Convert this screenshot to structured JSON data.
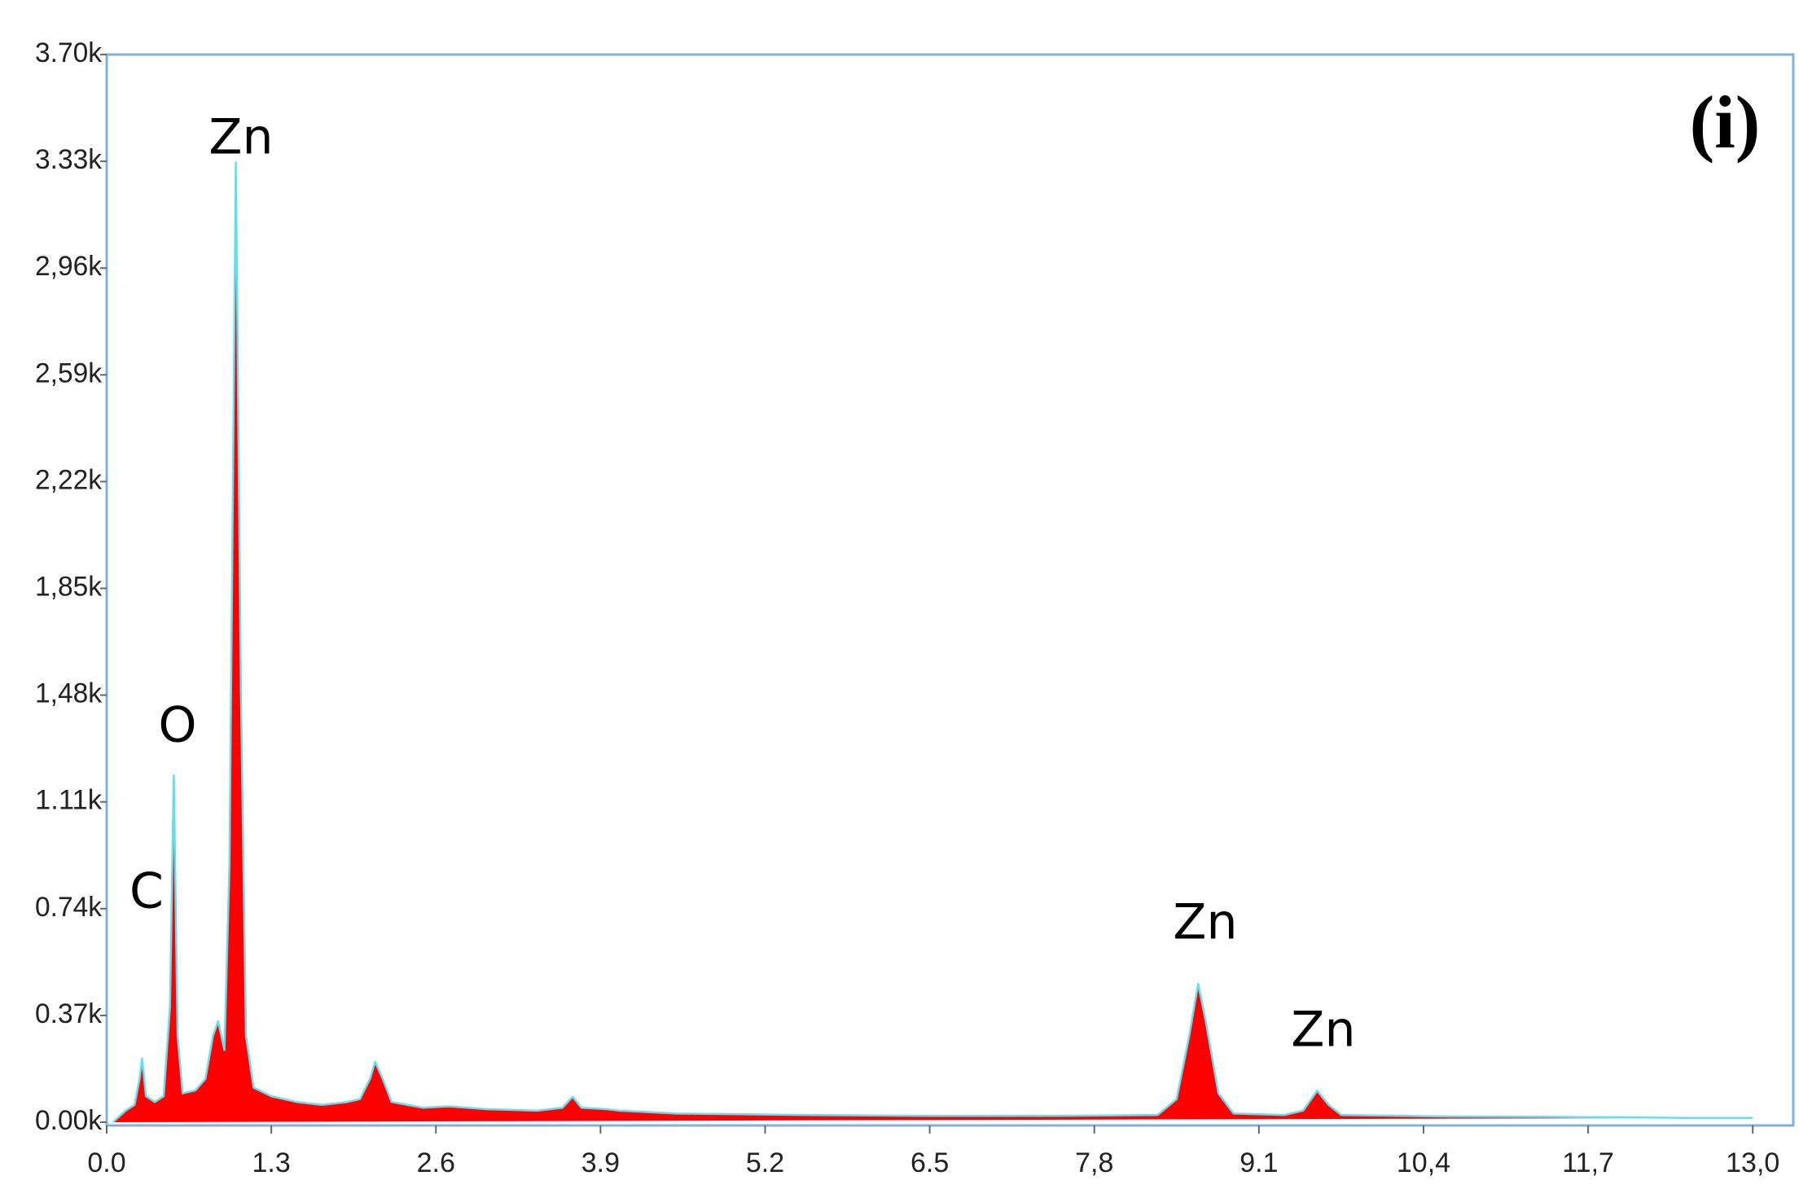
{
  "chart_data": {
    "type": "area",
    "annotations": [
      "C",
      "O",
      "Zn",
      "Zn",
      "Zn"
    ],
    "panel_label": "(i)",
    "frame_color": "#7fb2dc",
    "x": [
      0.05,
      0.15,
      0.22,
      0.26,
      0.28,
      0.31,
      0.38,
      0.45,
      0.5,
      0.53,
      0.56,
      0.6,
      0.7,
      0.78,
      0.84,
      0.88,
      0.93,
      0.97,
      1.02,
      1.06,
      1.1,
      1.16,
      1.3,
      1.5,
      1.7,
      1.9,
      2.0,
      2.08,
      2.12,
      2.18,
      2.25,
      2.5,
      2.7,
      3.0,
      3.4,
      3.6,
      3.68,
      3.75,
      3.95,
      4.05,
      4.5,
      5.5,
      6.5,
      7.5,
      8.3,
      8.45,
      8.55,
      8.62,
      8.68,
      8.78,
      8.9,
      9.3,
      9.45,
      9.56,
      9.65,
      9.75,
      10.5,
      11.5,
      12.5,
      13.0
    ],
    "series": [
      {
        "color": "#ff0000",
        "line_color": "#5ee0f0",
        "values": [
          0,
          40,
          60,
          150,
          221,
          90,
          70,
          90,
          400,
          1202,
          300,
          100,
          110,
          150,
          300,
          350,
          250,
          900,
          3326,
          1500,
          300,
          120,
          90,
          70,
          60,
          70,
          80,
          150,
          209,
          150,
          70,
          50,
          55,
          45,
          40,
          50,
          88,
          50,
          45,
          40,
          30,
          25,
          22,
          22,
          25,
          80,
          300,
          479,
          350,
          100,
          30,
          25,
          40,
          109,
          60,
          25,
          20,
          18,
          15,
          15
        ]
      }
    ],
    "xlim": [
      0,
      13.32
    ],
    "xticks": [
      {
        "value": 0,
        "label": "0.0"
      },
      1.3,
      2.6,
      3.9,
      5.2,
      6.5,
      {
        "value": 7.8,
        "label": "7,8"
      },
      9.1,
      {
        "value": 10.4,
        "label": "10,4"
      },
      {
        "value": 11.7,
        "label": "11,7"
      },
      {
        "value": 13,
        "label": "13,0"
      }
    ],
    "ylim": [
      0,
      3700
    ],
    "yticks": [
      {
        "value": 0,
        "label": "0.00k"
      },
      {
        "value": 370,
        "label": "0.37k"
      },
      {
        "value": 740,
        "label": "0.74k"
      },
      {
        "value": 1110,
        "label": "1.11k"
      },
      {
        "value": 1480,
        "label": "1,48k"
      },
      {
        "value": 1850,
        "label": "1,85k"
      },
      {
        "value": 2220,
        "label": "2,22k"
      },
      {
        "value": 2590,
        "label": "2,59k"
      },
      {
        "value": 2960,
        "label": "2,96k"
      },
      {
        "value": 3330,
        "label": "3.33k"
      },
      {
        "value": 3700,
        "label": "3.70k"
      }
    ],
    "grid": false
  }
}
